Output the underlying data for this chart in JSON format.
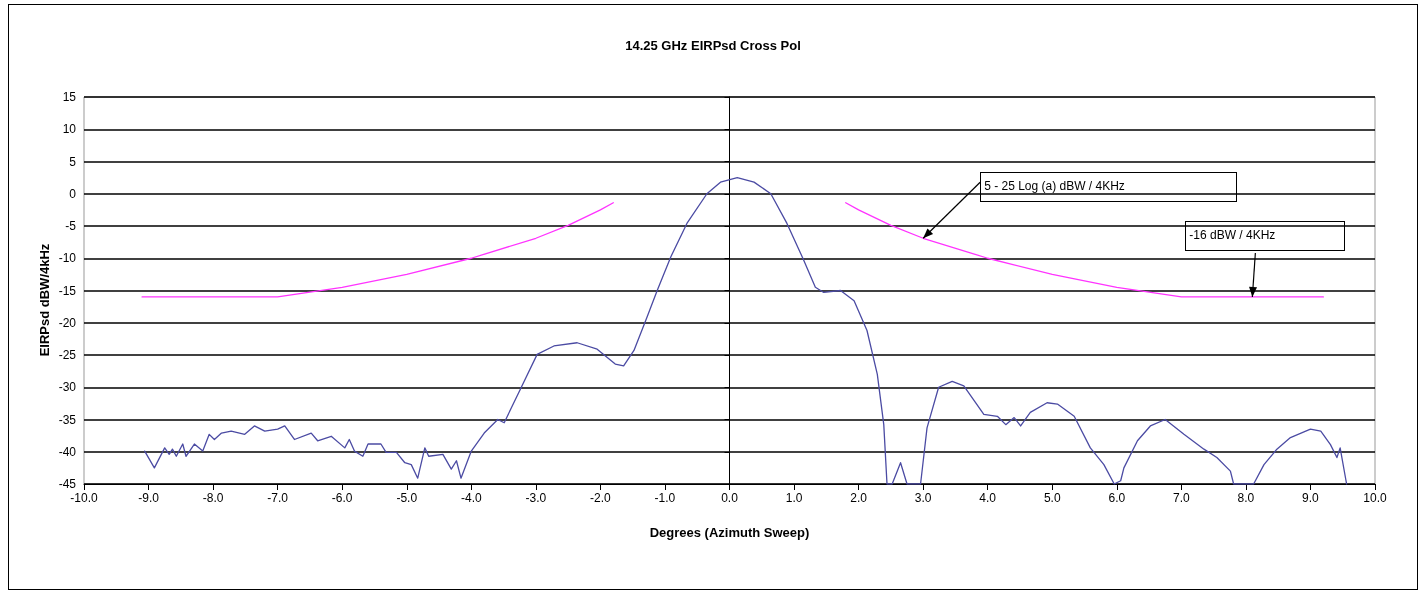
{
  "chart_data": {
    "type": "line",
    "title": "14.25 GHz EIRPsd Cross Pol",
    "xlabel": "Degrees (Azimuth Sweep)",
    "ylabel": "EIRPsd dBW/4kHz",
    "xlim": [
      -10,
      10
    ],
    "xticks": [
      {
        "value": -10,
        "label": "-10.0"
      },
      {
        "value": -9,
        "label": "-9.0"
      },
      {
        "value": -8,
        "label": "-8.0"
      },
      {
        "value": -7,
        "label": "-7.0"
      },
      {
        "value": -6,
        "label": "-6.0"
      },
      {
        "value": -5,
        "label": "-5.0"
      },
      {
        "value": -4,
        "label": "-4.0"
      },
      {
        "value": -3,
        "label": "-3.0"
      },
      {
        "value": -2,
        "label": "-2.0"
      },
      {
        "value": -1,
        "label": "-1.0"
      },
      {
        "value": 0,
        "label": "0.0"
      },
      {
        "value": 1,
        "label": "1.0"
      },
      {
        "value": 2,
        "label": "2.0"
      },
      {
        "value": 3,
        "label": "3.0"
      },
      {
        "value": 4,
        "label": "4.0"
      },
      {
        "value": 5,
        "label": "5.0"
      },
      {
        "value": 6,
        "label": "6.0"
      },
      {
        "value": 7,
        "label": "7.0"
      },
      {
        "value": 8,
        "label": "8.0"
      },
      {
        "value": 9,
        "label": "9.0"
      },
      {
        "value": 10,
        "label": "10.0"
      }
    ],
    "ylim": [
      -45,
      15
    ],
    "yticks": [
      -45,
      -40,
      -35,
      -30,
      -25,
      -20,
      -15,
      -10,
      -5,
      0,
      5,
      10,
      15
    ],
    "grid": "y",
    "marker": "none",
    "line_style": "solid",
    "series": [
      {
        "color": "#4b4ba3",
        "x": [
          -9.06,
          -8.91,
          -8.75,
          -8.68,
          -8.63,
          -8.57,
          -8.47,
          -8.42,
          -8.29,
          -8.16,
          -8.06,
          -7.98,
          -7.87,
          -7.72,
          -7.51,
          -7.36,
          -7.2,
          -7.0,
          -6.89,
          -6.74,
          -6.48,
          -6.38,
          -6.17,
          -5.96,
          -5.89,
          -5.81,
          -5.68,
          -5.6,
          -5.4,
          -5.32,
          -5.16,
          -5.03,
          -4.93,
          -4.83,
          -4.72,
          -4.66,
          -4.44,
          -4.31,
          -4.23,
          -4.16,
          -4.0,
          -3.8,
          -3.59,
          -3.49,
          -3.24,
          -2.98,
          -2.72,
          -2.36,
          -2.05,
          -1.77,
          -1.64,
          -1.48,
          -1.28,
          -1.12,
          -0.91,
          -0.66,
          -0.35,
          -0.14,
          0.12,
          0.38,
          0.64,
          0.89,
          1.15,
          1.33,
          1.46,
          1.72,
          1.93,
          2.13,
          2.29,
          2.39,
          2.44,
          2.52,
          2.65,
          2.75,
          2.96,
          3.06,
          3.24,
          3.45,
          3.63,
          3.94,
          4.15,
          4.28,
          4.41,
          4.51,
          4.66,
          4.92,
          5.08,
          5.34,
          5.59,
          5.8,
          5.96,
          6.06,
          6.11,
          6.32,
          6.52,
          6.75,
          7.04,
          7.35,
          7.55,
          7.76,
          7.81,
          8.12,
          8.28,
          8.48,
          8.69,
          9.0,
          9.16,
          9.31,
          9.41,
          9.46,
          9.56
        ],
        "values": [
          -39.9,
          -42.5,
          -39.4,
          -40.4,
          -39.6,
          -40.7,
          -38.8,
          -40.7,
          -38.8,
          -39.9,
          -37.3,
          -38.1,
          -37.1,
          -36.8,
          -37.3,
          -36.0,
          -36.8,
          -36.5,
          -36.0,
          -38.1,
          -37.1,
          -38.3,
          -37.6,
          -39.4,
          -38.1,
          -39.9,
          -40.7,
          -38.8,
          -38.8,
          -40.1,
          -40.1,
          -41.7,
          -42.0,
          -44.1,
          -39.4,
          -40.7,
          -40.4,
          -42.7,
          -41.4,
          -44.1,
          -39.9,
          -37.1,
          -35.0,
          -35.5,
          -30.3,
          -24.9,
          -23.6,
          -23.1,
          -24.1,
          -26.4,
          -26.7,
          -24.3,
          -19.2,
          -15.0,
          -9.8,
          -4.6,
          0.0,
          1.8,
          2.5,
          1.8,
          0.0,
          -4.6,
          -10.3,
          -14.5,
          -15.3,
          -15.0,
          -16.6,
          -21.2,
          -28.0,
          -35.8,
          -45,
          -45,
          -41.7,
          -45,
          -45,
          -36.3,
          -30.0,
          -29.1,
          -29.8,
          -34.2,
          -34.5,
          -35.8,
          -34.7,
          -36.0,
          -33.9,
          -32.4,
          -32.6,
          -34.5,
          -39.4,
          -42.0,
          -45,
          -44.5,
          -42.5,
          -38.3,
          -36.0,
          -35.0,
          -37.3,
          -39.6,
          -40.9,
          -43.0,
          -45,
          -45,
          -42.0,
          -39.6,
          -37.8,
          -36.5,
          -36.8,
          -38.9,
          -40.9,
          -39.4,
          -45
        ]
      },
      {
        "color": "#ff33ff",
        "x": [
          -9.1,
          -7.0,
          -6.0,
          -5.0,
          -4.0,
          -3.0,
          -2.5,
          -2.0,
          -1.8,
          0,
          1.8,
          2.0,
          2.5,
          3.0,
          4.0,
          5.0,
          6.0,
          7.0,
          9.2
        ],
        "values": [
          -16,
          -16,
          -14.5,
          -12.5,
          -10.0,
          -6.9,
          -4.9,
          -2.5,
          -1.4,
          null,
          -1.4,
          -2.5,
          -4.9,
          -6.9,
          -10.0,
          -12.5,
          -14.5,
          -16,
          -16
        ]
      }
    ],
    "annotations": [
      {
        "text": "5 - 25 Log (a) dBW / 4KHz",
        "x": 3.0,
        "y": -6.9
      },
      {
        "text": "-16 dBW / 4KHz",
        "x": 8.1,
        "y": -16
      }
    ]
  }
}
